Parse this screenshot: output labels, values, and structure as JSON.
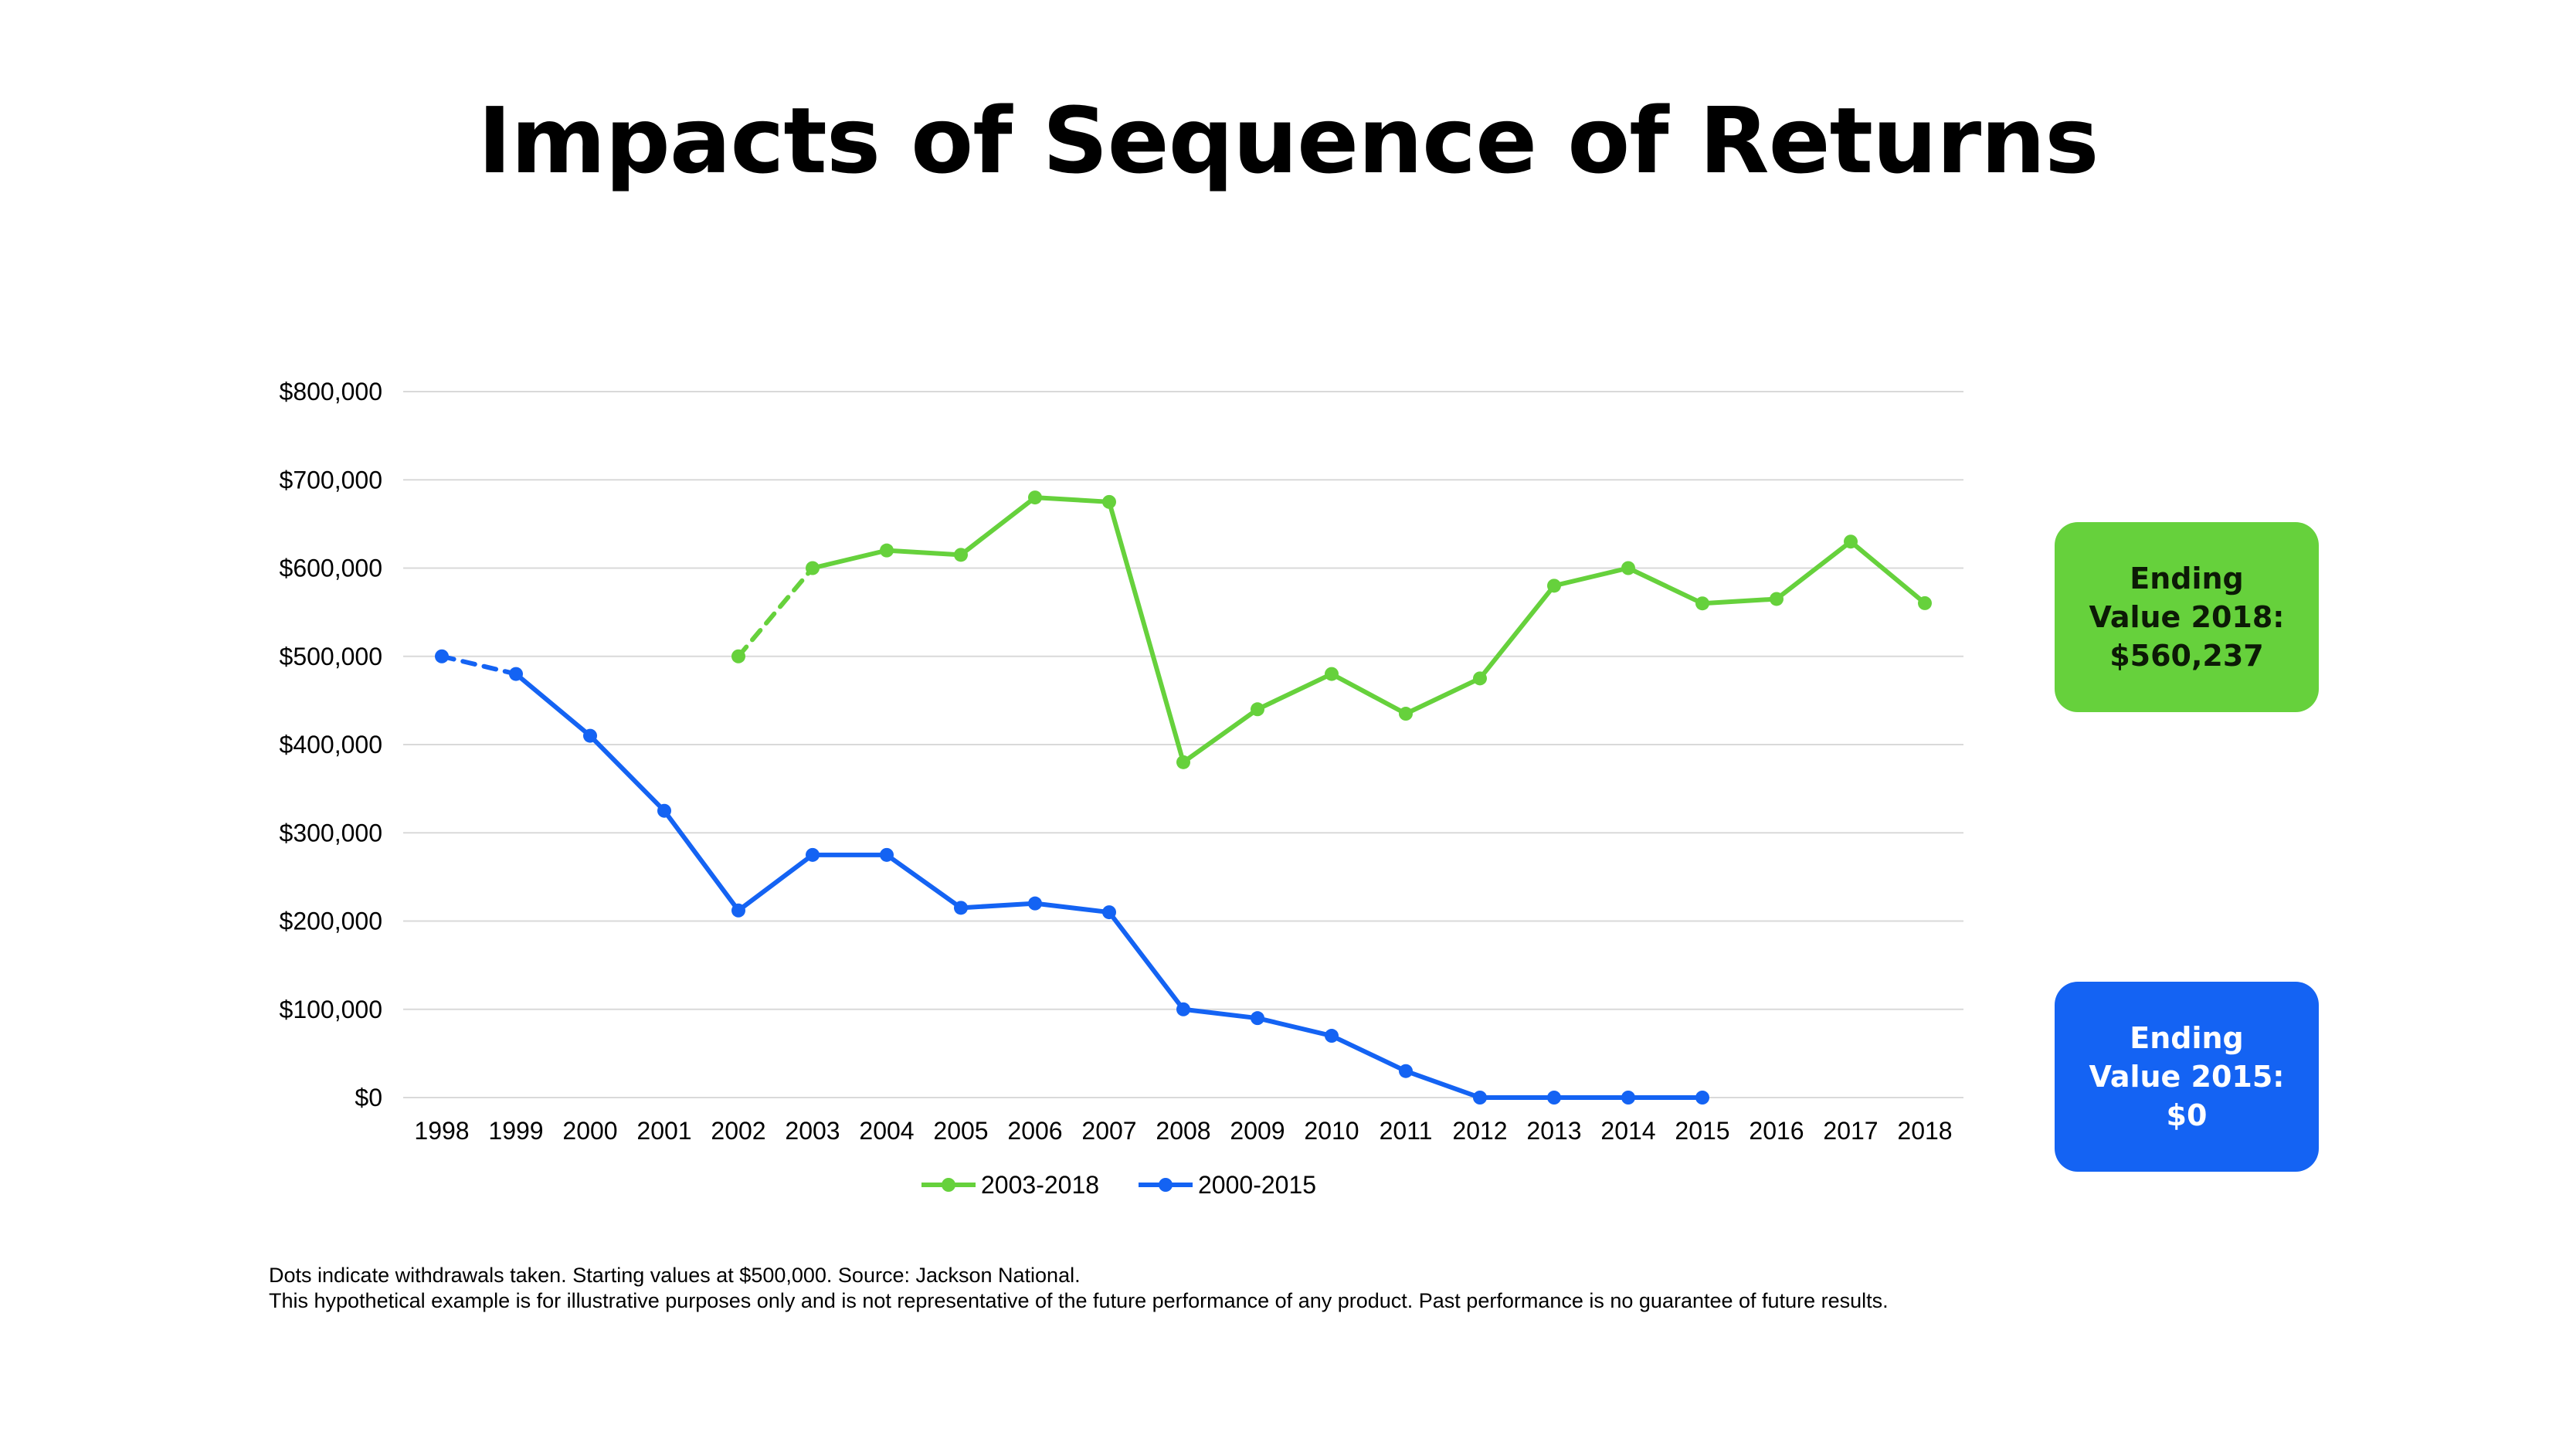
{
  "title": "Impacts of Sequence of Returns",
  "colors": {
    "green": "#66d13c",
    "blue": "#1463f3",
    "grid": "#d9d9d9"
  },
  "callouts": {
    "green": {
      "text": "Ending\nValue 2018:\n$560,237",
      "color": "#66d13c"
    },
    "blue": {
      "text": "Ending\nValue 2015:\n$0",
      "color": "#1463f3"
    }
  },
  "footnotes": [
    "Dots indicate withdrawals taken. Starting values at $500,000. Source: Jackson National.",
    "This hypothetical example is for illustrative purposes only and is not representative of the future performance of any product. Past performance is no guarantee of future results."
  ],
  "chart_data": {
    "type": "line",
    "title": "",
    "xlabel": "",
    "ylabel": "",
    "ylim": [
      0,
      800000
    ],
    "y_ticks": [
      "$0",
      "$100,000",
      "$200,000",
      "$300,000",
      "$400,000",
      "$500,000",
      "$600,000",
      "$700,000",
      "$800,000"
    ],
    "y_tick_values": [
      0,
      100000,
      200000,
      300000,
      400000,
      500000,
      600000,
      700000,
      800000
    ],
    "categories": [
      "1998",
      "1999",
      "2000",
      "2001",
      "2002",
      "2003",
      "2004",
      "2005",
      "2006",
      "2007",
      "2008",
      "2009",
      "2010",
      "2011",
      "2012",
      "2013",
      "2014",
      "2015",
      "2016",
      "2017",
      "2018"
    ],
    "grid": true,
    "legend_position": "bottom-center",
    "series": [
      {
        "name": "2003-2018",
        "color": "#66d13c",
        "dashed_through": "2003",
        "values": [
          null,
          null,
          null,
          null,
          500000,
          600000,
          620000,
          615000,
          680000,
          675000,
          380000,
          440000,
          480000,
          435000,
          475000,
          580000,
          600000,
          560000,
          565000,
          630000,
          560237
        ]
      },
      {
        "name": "2000-2015",
        "color": "#1463f3",
        "dashed_through": "1999",
        "values": [
          500000,
          480000,
          410000,
          325000,
          212000,
          275000,
          275000,
          215000,
          220000,
          210000,
          100000,
          90000,
          70000,
          30000,
          0,
          0,
          0,
          0,
          null,
          null,
          null
        ]
      }
    ]
  }
}
